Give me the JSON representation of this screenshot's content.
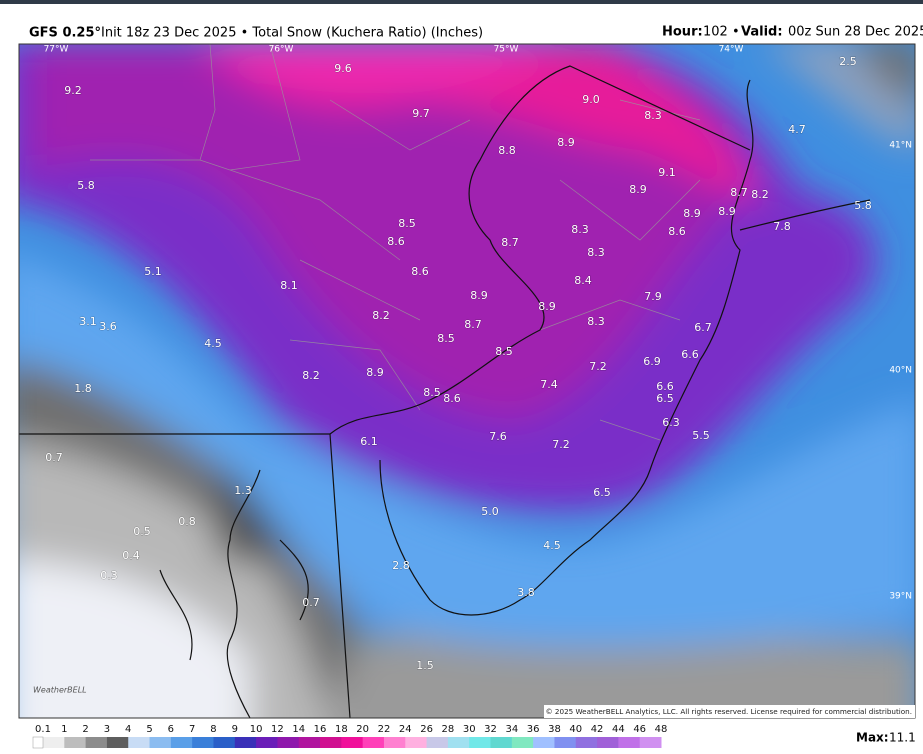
{
  "header": {
    "model": "GFS 0.25°",
    "info": "Init 18z 23 Dec 2025 • Total Snow (Kuchera Ratio) (Inches)",
    "hour_key": "Hour:",
    "hour": "102 •",
    "valid_key": "Valid:",
    "valid": "00z Sun 28 Dec 2025"
  },
  "map": {
    "lon_labels": [
      "77°W",
      "76°W",
      "75°W",
      "74°W"
    ],
    "lat_labels": [
      "41°N",
      "40°N",
      "39°N"
    ],
    "values": [
      "9.2",
      "9.6",
      "9.7",
      "9.0",
      "8.3",
      "2.5",
      "4.7",
      "8.8",
      "8.9",
      "9.1",
      "5.8",
      "8.9",
      "8.7",
      "8.2",
      "5.8",
      "8.5",
      "8.9",
      "8.9",
      "8.3",
      "8.6",
      "7.8",
      "8.6",
      "8.7",
      "8.3",
      "5.1",
      "8.6",
      "8.4",
      "8.1",
      "8.9",
      "7.9",
      "8.9",
      "3.1",
      "3.6",
      "8.2",
      "8.7",
      "8.3",
      "6.7",
      "4.5",
      "8.5",
      "8.5",
      "6.6",
      "6.9",
      "7.2",
      "8.2",
      "8.9",
      "1.8",
      "7.4",
      "6.6",
      "8.5",
      "8.6",
      "6.5",
      "6.3",
      "0.7",
      "7.6",
      "5.5",
      "6.1",
      "7.2",
      "1.3",
      "6.5",
      "5.0",
      "0.8",
      "0.5",
      "4.5",
      "0.4",
      "2.8",
      "0.3",
      "3.8",
      "0.7",
      "1.5"
    ],
    "logo": "WeatherBELL",
    "copyright": "© 2025 WeatherBELL Analytics, LLC. All rights reserved. License required for commercial distribution."
  },
  "legend": {
    "labels": [
      "0.1",
      "1",
      "2",
      "3",
      "4",
      "5",
      "6",
      "7",
      "8",
      "9",
      "10",
      "12",
      "14",
      "16",
      "18",
      "20",
      "22",
      "24",
      "26",
      "28",
      "30",
      "32",
      "34",
      "36",
      "38",
      "40",
      "42",
      "44",
      "46",
      "48"
    ],
    "max_key": "Max:",
    "max": "11.1"
  }
}
